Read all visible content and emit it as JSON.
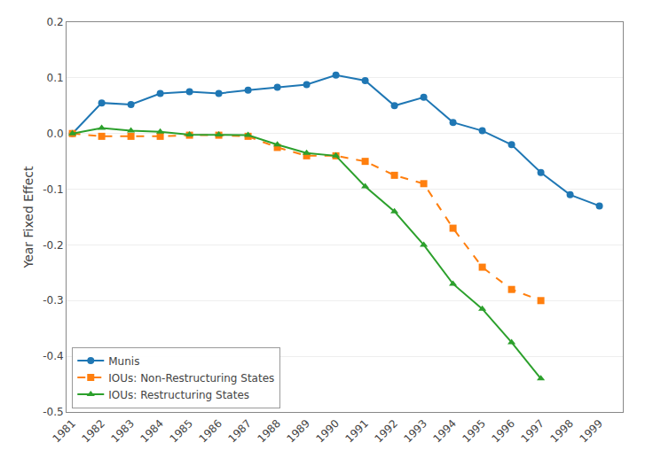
{
  "chart_data": {
    "type": "line",
    "ylabel": "Year Fixed Effect",
    "x": [
      1981,
      1982,
      1983,
      1984,
      1985,
      1986,
      1987,
      1988,
      1989,
      1990,
      1991,
      1992,
      1993,
      1994,
      1995,
      1996,
      1997,
      1998,
      1999
    ],
    "series": [
      {
        "name": "Munis",
        "marker": "circle",
        "line_style": "solid",
        "values": [
          0.0,
          0.055,
          0.052,
          0.072,
          0.075,
          0.072,
          0.078,
          0.083,
          0.088,
          0.105,
          0.095,
          0.05,
          0.065,
          0.02,
          0.005,
          -0.02,
          -0.07,
          -0.11,
          -0.13
        ]
      },
      {
        "name": "IOUs: Non-Restructuring States",
        "marker": "square",
        "line_style": "dash",
        "values": [
          0.0,
          -0.005,
          -0.005,
          -0.005,
          -0.003,
          -0.003,
          -0.005,
          -0.025,
          -0.04,
          -0.04,
          -0.05,
          -0.075,
          -0.09,
          -0.17,
          -0.24,
          -0.28,
          -0.3,
          null,
          null
        ]
      },
      {
        "name": "IOUs: Restructuring States",
        "marker": "triangle-up",
        "line_style": "solid",
        "values": [
          0.0,
          0.01,
          0.005,
          0.003,
          -0.002,
          -0.002,
          -0.003,
          -0.02,
          -0.035,
          -0.04,
          -0.095,
          -0.14,
          -0.2,
          -0.27,
          -0.315,
          -0.375,
          -0.44,
          null,
          null
        ]
      }
    ],
    "xlim": [
      1980.8,
      1999.8
    ],
    "xticks": [
      1981,
      1982,
      1983,
      1984,
      1985,
      1986,
      1987,
      1988,
      1989,
      1990,
      1991,
      1992,
      1993,
      1994,
      1995,
      1996,
      1997,
      1998,
      1999
    ],
    "ylim": [
      -0.5,
      0.2
    ],
    "yticks": [
      -0.5,
      -0.4,
      -0.3,
      -0.2,
      -0.1,
      {
        "value": 0.0,
        "label": "0.0"
      },
      0.1,
      0.2
    ],
    "grid": true,
    "legend": "lower left"
  }
}
